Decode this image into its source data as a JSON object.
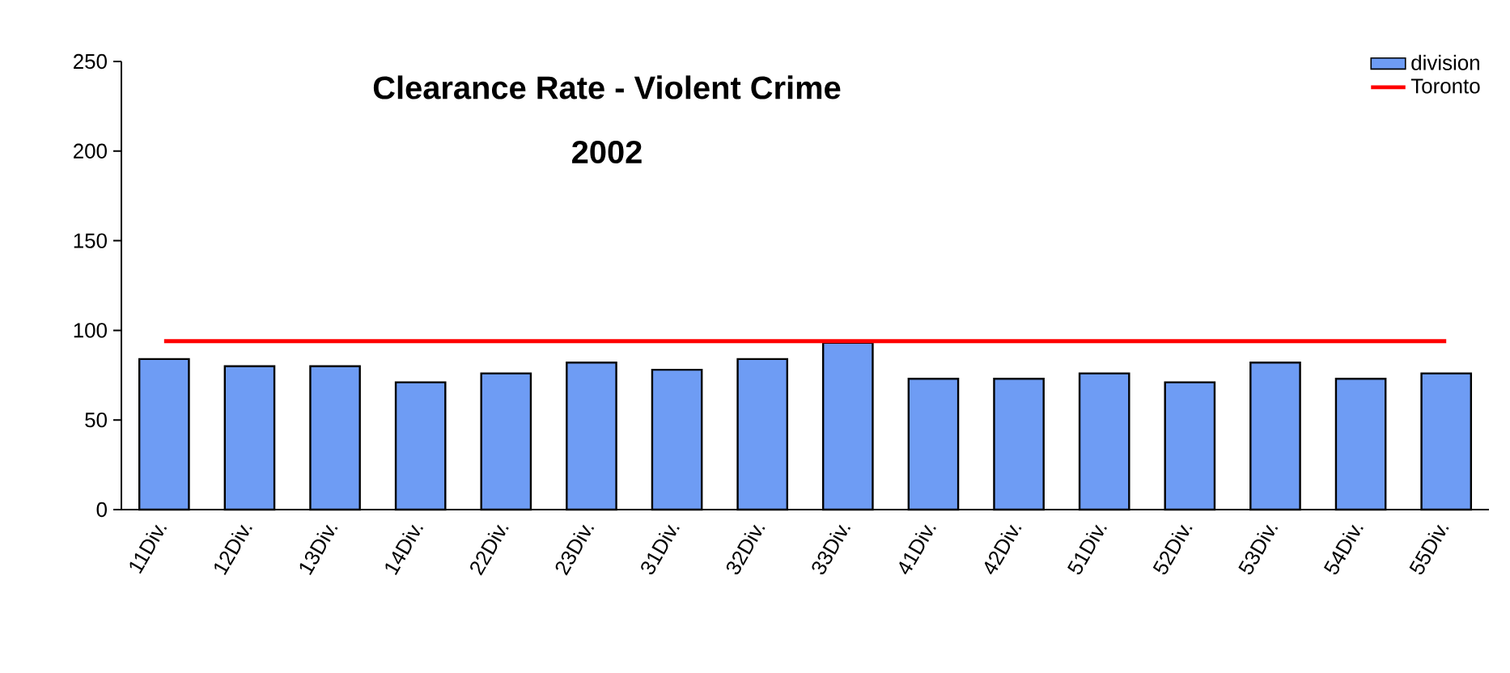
{
  "chart_data": {
    "type": "bar",
    "title": "Clearance Rate - Violent Crime",
    "subtitle": "2002",
    "categories": [
      "11Div.",
      "12Div.",
      "13Div.",
      "14Div.",
      "22Div.",
      "23Div.",
      "31Div.",
      "32Div.",
      "33Div.",
      "41Div.",
      "42Div.",
      "51Div.",
      "52Div.",
      "53Div.",
      "54Div.",
      "55Div."
    ],
    "series": [
      {
        "name": "division",
        "color": "#6e9cf4",
        "values": [
          84,
          80,
          80,
          71,
          76,
          82,
          78,
          84,
          93,
          73,
          73,
          76,
          71,
          82,
          73,
          76
        ]
      },
      {
        "name": "Toronto",
        "type": "line",
        "color": "#ff0000",
        "values": [
          94,
          94,
          94,
          94,
          94,
          94,
          94,
          94,
          94,
          94,
          94,
          94,
          94,
          94,
          94,
          94
        ]
      }
    ],
    "ylim": [
      0,
      250
    ],
    "yticks": [
      0,
      50,
      100,
      150,
      200,
      250
    ],
    "grid": false,
    "legend": "top right",
    "marker": "none"
  }
}
